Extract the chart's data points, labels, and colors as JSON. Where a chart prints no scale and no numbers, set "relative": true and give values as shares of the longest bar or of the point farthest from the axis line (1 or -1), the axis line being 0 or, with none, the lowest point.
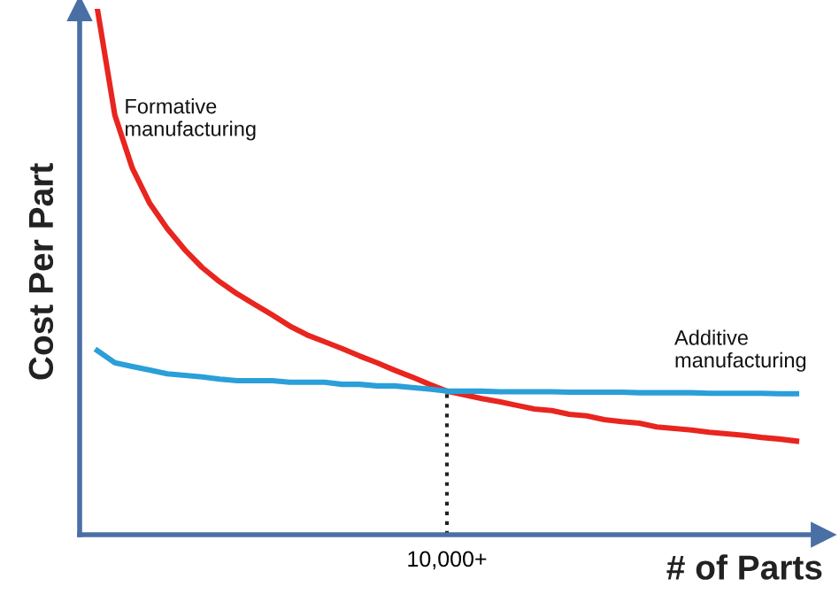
{
  "chart_data": {
    "type": "line",
    "relative": true,
    "xlabel": "# of Parts",
    "ylabel": "Cost Per Part",
    "categories": [
      null,
      null,
      null,
      null,
      null,
      null,
      null,
      null,
      null,
      null,
      null,
      null,
      null,
      null,
      null,
      null,
      null,
      null,
      null,
      null,
      null,
      null,
      null,
      null,
      null,
      null,
      null,
      null,
      null,
      null,
      null,
      null,
      null,
      null,
      null,
      null,
      null,
      null,
      null,
      null,
      null
    ],
    "series": [
      {
        "name": "Formative\nmanufacturing",
        "color": "#e8251f",
        "values": [
          1.0,
          0.798,
          0.697,
          0.63,
          0.582,
          0.542,
          0.508,
          0.481,
          0.458,
          0.438,
          0.418,
          0.397,
          0.38,
          0.367,
          0.354,
          0.34,
          0.327,
          0.313,
          0.3,
          0.286,
          0.273,
          0.266,
          0.259,
          0.253,
          0.246,
          0.239,
          0.236,
          0.229,
          0.226,
          0.219,
          0.215,
          0.212,
          0.205,
          0.202,
          0.199,
          0.195,
          0.192,
          0.189,
          0.185,
          0.182,
          0.178
        ]
      },
      {
        "name": "Additive\nmanufacturing",
        "color": "#2a9fd8",
        "values": [
          0.35,
          0.327,
          0.32,
          0.313,
          0.306,
          0.303,
          0.3,
          0.296,
          0.293,
          0.293,
          0.293,
          0.29,
          0.29,
          0.29,
          0.286,
          0.286,
          0.283,
          0.283,
          0.28,
          0.277,
          0.273,
          0.273,
          0.273,
          0.272,
          0.272,
          0.272,
          0.272,
          0.271,
          0.271,
          0.271,
          0.271,
          0.27,
          0.27,
          0.27,
          0.27,
          0.269,
          0.269,
          0.269,
          0.269,
          0.268,
          0.268
        ]
      }
    ],
    "ref_lines": [
      {
        "axis": "x",
        "label": "10,000+",
        "line_style": "dotted",
        "color": "#222222"
      }
    ],
    "line_style": "solid",
    "marker": "none"
  }
}
